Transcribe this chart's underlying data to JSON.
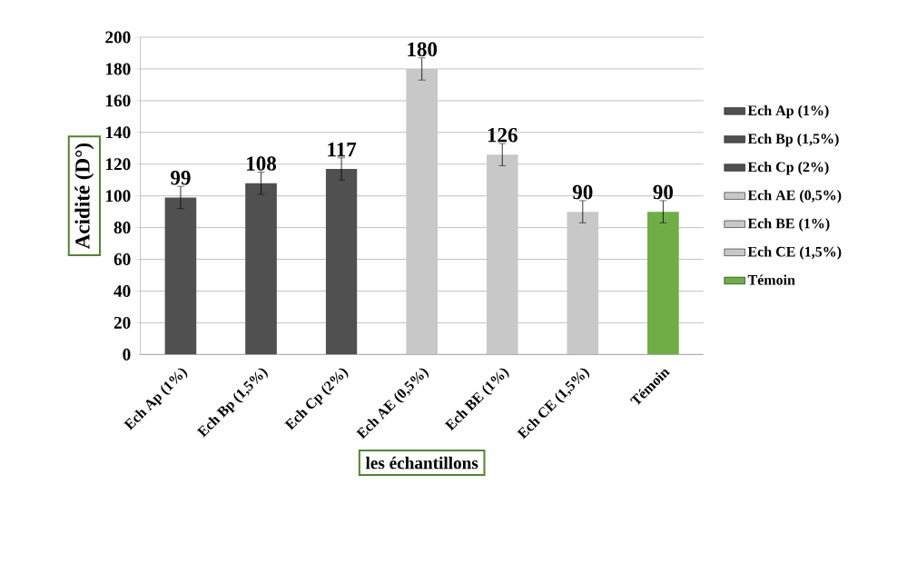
{
  "chart_data": {
    "type": "bar",
    "xlabel": "les échantillons",
    "ylabel": "Acidité (D°)",
    "categories": [
      "Ech Ap (1%)",
      "Ech Bp (1,5%)",
      "Ech Cp (2%)",
      "Ech AE (0,5%)",
      "Ech BE (1%)",
      "Ech CE (1,5%)",
      "Témoin"
    ],
    "series": [
      {
        "name": "Ech Ap (1%)",
        "color": "#505050",
        "values": [
          99,
          null,
          null,
          null,
          null,
          null,
          null
        ],
        "errors": [
          7,
          null,
          null,
          null,
          null,
          null,
          null
        ]
      },
      {
        "name": "Ech Bp (1,5%)",
        "color": "#505050",
        "values": [
          null,
          108,
          null,
          null,
          null,
          null,
          null
        ],
        "errors": [
          null,
          7,
          null,
          null,
          null,
          null,
          null
        ]
      },
      {
        "name": "Ech Cp (2%)",
        "color": "#505050",
        "values": [
          null,
          null,
          117,
          null,
          null,
          null,
          null
        ],
        "errors": [
          null,
          null,
          7,
          null,
          null,
          null,
          null
        ]
      },
      {
        "name": "Ech AE (0,5%)",
        "color": "#c8c8c8",
        "values": [
          null,
          null,
          null,
          180,
          null,
          null,
          null
        ],
        "errors": [
          null,
          null,
          null,
          7,
          null,
          null,
          null
        ]
      },
      {
        "name": "Ech BE (1%)",
        "color": "#c8c8c8",
        "values": [
          null,
          null,
          null,
          null,
          126,
          null,
          null
        ],
        "errors": [
          null,
          null,
          null,
          null,
          7,
          null,
          null
        ]
      },
      {
        "name": "Ech CE (1,5%)",
        "color": "#c8c8c8",
        "values": [
          null,
          null,
          null,
          null,
          null,
          90,
          null
        ],
        "errors": [
          null,
          null,
          null,
          null,
          null,
          7,
          null
        ]
      },
      {
        "name": "Témoin",
        "color": "#70ad47",
        "values": [
          null,
          null,
          null,
          null,
          null,
          null,
          90
        ],
        "errors": [
          null,
          null,
          null,
          null,
          null,
          null,
          7
        ]
      }
    ],
    "ylim": [
      0,
      200
    ],
    "yticks": [
      0,
      20,
      40,
      60,
      80,
      100,
      120,
      140,
      160,
      180,
      200
    ],
    "grid": "y",
    "legend": "right",
    "data_labels": true
  }
}
